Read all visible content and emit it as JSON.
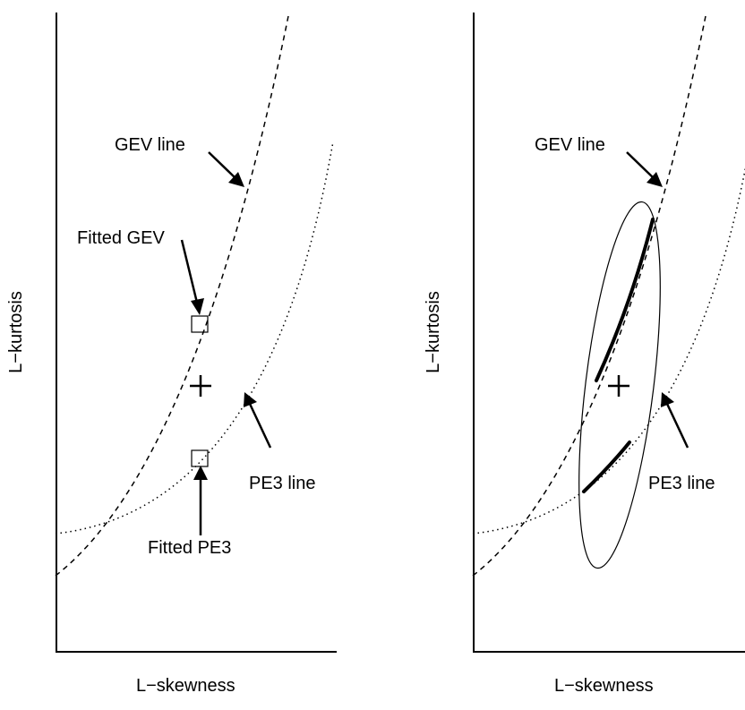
{
  "panels": [
    {
      "xlabel": "L−skewness",
      "ylabel": "L−kurtosis",
      "labels": {
        "gev_line": "GEV line",
        "pe3_line": "PE3 line",
        "fitted_gev": "Fitted GEV",
        "fitted_pe3": "Fitted PE3"
      }
    },
    {
      "xlabel": "L−skewness",
      "ylabel": "L−kurtosis",
      "labels": {
        "gev_line": "GEV line",
        "pe3_line": "PE3 line"
      }
    }
  ]
}
